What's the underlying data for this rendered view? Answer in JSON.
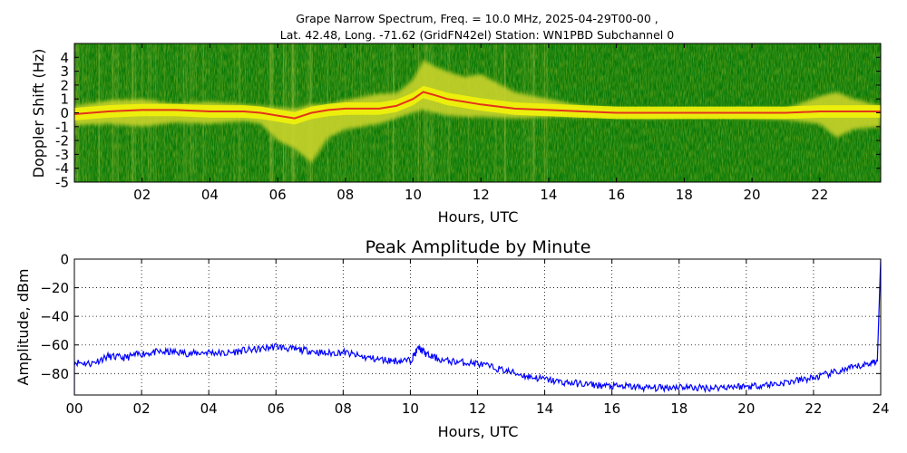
{
  "chart_data": [
    {
      "type": "heatmap",
      "title_line1": "Grape Narrow Spectrum, Freq. = 10.0 MHz, 2025-04-29T00-00 ,",
      "title_line2": "Lat.  42.48, Long. -71.62 (GridFN42el) Station: WN1PBD Subchannel 0",
      "xlabel": "Hours, UTC",
      "ylabel": "Doppler Shift (Hz)",
      "xlim": [
        0,
        23.8
      ],
      "ylim": [
        -5,
        5
      ],
      "xticks": [
        2,
        4,
        6,
        8,
        10,
        12,
        14,
        16,
        18,
        20,
        22
      ],
      "xtick_labels": [
        "02",
        "04",
        "06",
        "08",
        "10",
        "12",
        "14",
        "16",
        "18",
        "20",
        "22"
      ],
      "yticks": [
        -5,
        -4,
        -3,
        -2,
        -1,
        0,
        1,
        2,
        3,
        4
      ],
      "ytick_labels": [
        "-5",
        "-4",
        "-3",
        "-2",
        "-1",
        "0",
        "1",
        "2",
        "3",
        "4"
      ],
      "colors": {
        "background": "#0a7a0a",
        "mid": "#cfd62a",
        "high": "#f2f20a",
        "peak": "#e4331a"
      },
      "peak_trace": {
        "x": [
          0,
          1,
          2,
          3,
          4,
          5,
          5.5,
          6,
          6.5,
          7,
          7.5,
          8,
          9,
          9.5,
          10,
          10.3,
          10.6,
          11,
          12,
          13,
          14,
          15,
          16,
          17,
          18,
          19,
          20,
          21,
          22,
          23,
          23.8
        ],
        "y": [
          -0.1,
          0.1,
          0.2,
          0.2,
          0.1,
          0.1,
          0.0,
          -0.2,
          -0.4,
          0.0,
          0.2,
          0.3,
          0.3,
          0.5,
          1.0,
          1.5,
          1.3,
          1.0,
          0.6,
          0.3,
          0.2,
          0.1,
          0.0,
          0.0,
          0.0,
          0.0,
          0.0,
          0.0,
          0.1,
          0.1,
          0.1
        ]
      },
      "spread_envelope": {
        "x": [
          0,
          1,
          2,
          3,
          4,
          5,
          5.5,
          6,
          6.5,
          7,
          7.5,
          8,
          9,
          9.5,
          10,
          10.3,
          10.6,
          11,
          11.5,
          12,
          13,
          14,
          15,
          16,
          17,
          18,
          19,
          20,
          21,
          22,
          22.5,
          23,
          23.8
        ],
        "upper": [
          0.5,
          0.9,
          1.0,
          0.6,
          0.8,
          0.6,
          0.5,
          0.4,
          0.3,
          0.6,
          0.6,
          0.9,
          1.4,
          1.4,
          2.4,
          3.8,
          3.4,
          3.0,
          2.6,
          2.8,
          1.5,
          1.0,
          0.5,
          0.3,
          0.2,
          0.2,
          0.2,
          0.3,
          0.3,
          1.2,
          1.5,
          1.0,
          0.5
        ],
        "lower": [
          -0.9,
          -0.8,
          -1.0,
          -0.7,
          -0.8,
          -0.6,
          -0.8,
          -2.0,
          -2.6,
          -3.6,
          -1.8,
          -1.2,
          -0.8,
          -0.4,
          0.0,
          0.2,
          0.0,
          -0.2,
          -0.3,
          -0.3,
          -0.4,
          -0.3,
          -0.3,
          -0.3,
          -0.4,
          -0.3,
          -0.3,
          -0.4,
          -0.5,
          -0.8,
          -1.8,
          -1.2,
          -1.0
        ]
      }
    },
    {
      "type": "line",
      "title": "Peak Amplitude by Minute",
      "xlabel": "Hours, UTC",
      "ylabel": "Amplitude, dBm",
      "xlim": [
        0,
        24
      ],
      "ylim": [
        -95,
        0
      ],
      "xticks": [
        0,
        2,
        4,
        6,
        8,
        10,
        12,
        14,
        16,
        18,
        20,
        22,
        24
      ],
      "xtick_labels": [
        "00",
        "02",
        "04",
        "06",
        "08",
        "10",
        "12",
        "14",
        "16",
        "18",
        "20",
        "22",
        "24"
      ],
      "yticks": [
        0,
        -20,
        -40,
        -60,
        -80
      ],
      "ytick_labels": [
        "0",
        "−20",
        "−40",
        "−60",
        "−80"
      ],
      "grid": true,
      "line_color": "#0000ff",
      "x": [
        0,
        0.5,
        1,
        1.5,
        2,
        2.5,
        3,
        3.5,
        4,
        4.5,
        5,
        5.5,
        6,
        6.5,
        7,
        7.5,
        8,
        8.5,
        9,
        9.5,
        10,
        10.25,
        10.5,
        11,
        11.5,
        12,
        12.5,
        13,
        13.5,
        14,
        14.5,
        15,
        15.5,
        16,
        16.5,
        17,
        17.5,
        18,
        18.5,
        19,
        19.5,
        20,
        20.5,
        21,
        21.5,
        22,
        22.5,
        23,
        23.5,
        23.9
      ],
      "y": [
        -72,
        -73,
        -68,
        -69,
        -66,
        -65,
        -65,
        -66,
        -65,
        -66,
        -64,
        -63,
        -61,
        -63,
        -64,
        -66,
        -65,
        -68,
        -70,
        -71,
        -71,
        -62,
        -67,
        -71,
        -72,
        -73,
        -76,
        -79,
        -82,
        -84,
        -86,
        -87,
        -88,
        -89,
        -89,
        -90,
        -90,
        -89,
        -90,
        -90,
        -89,
        -89,
        -88,
        -87,
        -85,
        -83,
        -80,
        -77,
        -74,
        -71
      ]
    }
  ]
}
